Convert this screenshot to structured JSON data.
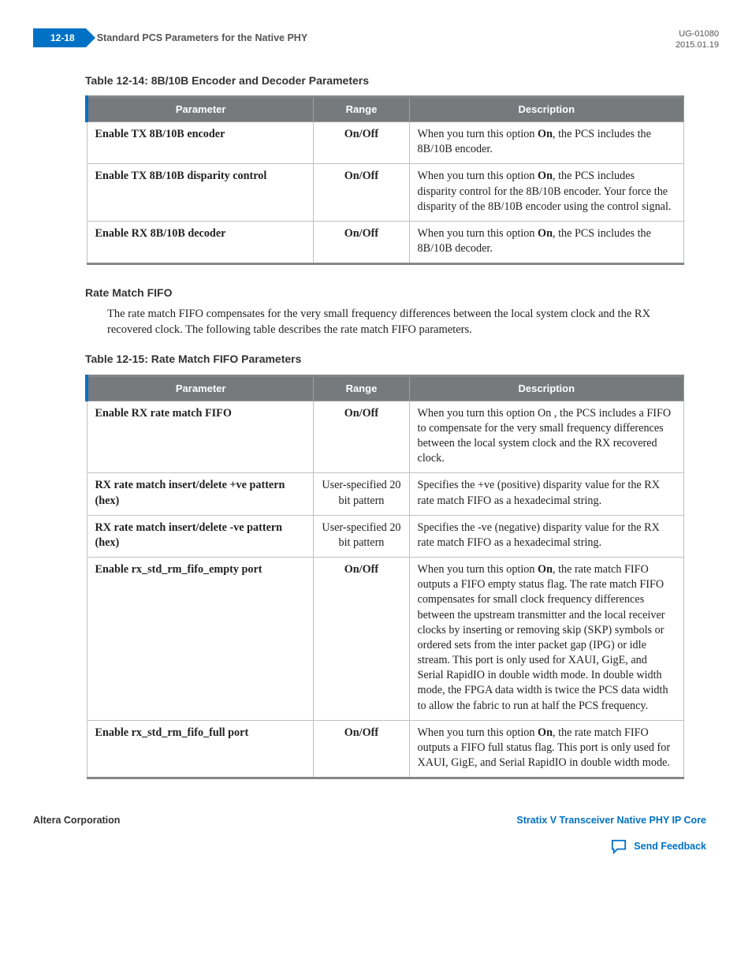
{
  "header": {
    "page_number": "12-18",
    "chapter_title": "Standard PCS Parameters for the Native PHY",
    "doc_id": "UG-01080",
    "date": "2015.01.19"
  },
  "table1": {
    "caption": "Table 12-14: 8B/10B Encoder and Decoder Parameters",
    "columns": [
      "Parameter",
      "Range",
      "Description"
    ],
    "rows": [
      {
        "param": "Enable TX 8B/10B encoder",
        "range": "On/Off",
        "desc_parts": [
          "When you turn this option ",
          "On",
          ", the PCS includes the 8B/10B encoder."
        ]
      },
      {
        "param": "Enable TX 8B/10B disparity control",
        "range": "On/Off",
        "desc_parts": [
          "When you turn this option ",
          "On",
          ", the PCS includes disparity control for the 8B/10B encoder. Your force the disparity of the 8B/10B encoder using the                          control signal."
        ]
      },
      {
        "param": "Enable RX 8B/10B decoder",
        "range": "On/Off",
        "desc_parts": [
          "When you turn this option ",
          "On",
          ", the PCS includes the 8B/10B decoder."
        ]
      }
    ]
  },
  "section": {
    "heading": "Rate Match FIFO",
    "body": "The rate match FIFO compensates for the very small frequency differences between the local system clock and the RX recovered clock. The following table describes the rate match FIFO parameters."
  },
  "table2": {
    "caption": "Table 12-15: Rate Match FIFO Parameters",
    "columns": [
      "Parameter",
      "Range",
      "Description"
    ],
    "rows": [
      {
        "param": "Enable RX rate match FIFO",
        "range": "On/Off",
        "range_bold": true,
        "desc_parts": [
          "When you turn this option On , the PCS includes a FIFO to compensate for the very small frequency differences between the local system clock and the RX recovered clock."
        ]
      },
      {
        "param": "RX rate match insert/delete +ve pattern (hex)",
        "range": "User-specified 20 bit pattern",
        "range_bold": false,
        "desc_parts": [
          "Specifies the +ve (positive) disparity value for the RX rate match FIFO as a hexadecimal string."
        ]
      },
      {
        "param": "RX rate match insert/delete -ve pattern (hex)",
        "range": "User-specified 20 bit pattern",
        "range_bold": false,
        "desc_parts": [
          "Specifies the -ve (negative) disparity value for the RX rate match FIFO as a hexadecimal string."
        ]
      },
      {
        "param": "Enable rx_std_rm_fifo_empty port",
        "range": "On/Off",
        "range_bold": true,
        "desc_parts": [
          "When you turn this option ",
          "On",
          ", the rate match FIFO outputs a FIFO empty status flag. The rate match FIFO compensates for small clock frequency differences between the upstream transmitter and the local receiver clocks by inserting or removing skip (SKP) symbols or ordered sets from the inter packet gap (IPG) or idle stream. This port is only used for XAUI, GigE, and Serial RapidIO in double width mode. In double width mode, the FPGA data width is twice the PCS data width to allow the fabric to run at half the PCS frequency."
        ]
      },
      {
        "param": "Enable rx_std_rm_fifo_full port",
        "range": "On/Off",
        "range_bold": true,
        "desc_parts": [
          "When you turn this option ",
          "On",
          ", the rate match FIFO outputs a FIFO full status flag. This port is only used for XAUI, GigE, and Serial RapidIO in double width mode."
        ]
      }
    ]
  },
  "footer": {
    "left": "Altera Corporation",
    "right_main": "Stratix V Transceiver Native PHY IP Core",
    "feedback": "Send Feedback"
  },
  "colors": {
    "brand_blue": "#0071c5",
    "header_gray": "#777a7d",
    "rule_gray": "#84878a",
    "border_gray": "#bfc1c3"
  }
}
